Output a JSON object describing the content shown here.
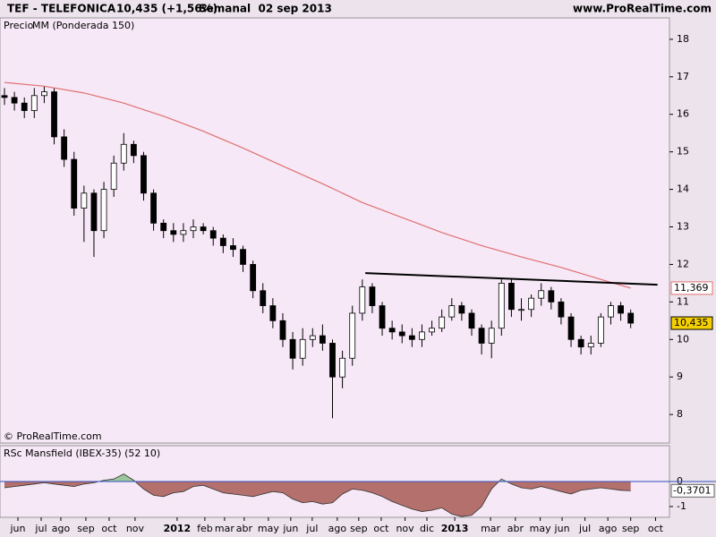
{
  "header": {
    "symbol": "TEF - TELEFONICA",
    "quote": "10,435 (+1,56%)",
    "period": "Semanal  02 sep 2013",
    "site": "www.ProRealTime.com",
    "watermark": "© ProRealTime.com"
  },
  "chart_data": [
    {
      "type": "candlestick",
      "xlim": [
        -0.45,
        66.9
      ],
      "ylim": [
        7.24,
        18.57
      ],
      "yticks": [
        8,
        9,
        10,
        11,
        12,
        13,
        14,
        15,
        16,
        17,
        18
      ],
      "series": [
        {
          "name": "Precio",
          "color": "#000000",
          "open": [
            16.5,
            16.45,
            16.3,
            16.1,
            16.5,
            16.6,
            15.4,
            14.8,
            13.5,
            13.9,
            12.9,
            14.0,
            14.7,
            15.2,
            14.9,
            13.9,
            13.1,
            12.9,
            12.8,
            12.9,
            13.0,
            12.9,
            12.7,
            12.5,
            12.4,
            12.0,
            11.3,
            10.9,
            10.5,
            10.0,
            9.5,
            10.0,
            10.1,
            9.9,
            9.0,
            9.5,
            10.7,
            11.4,
            10.9,
            10.3,
            10.2,
            10.1,
            10.0,
            10.2,
            10.3,
            10.6,
            10.9,
            10.7,
            10.3,
            9.9,
            10.3,
            11.5,
            10.8,
            10.8,
            11.1,
            11.3,
            11.0,
            10.6,
            10.0,
            9.8,
            9.9,
            10.6,
            10.9,
            10.7
          ],
          "high": [
            16.7,
            16.6,
            16.45,
            16.7,
            16.75,
            16.7,
            15.6,
            15.0,
            14.1,
            14.0,
            14.2,
            14.9,
            15.5,
            15.3,
            15.0,
            14.0,
            13.2,
            13.1,
            13.1,
            13.2,
            13.1,
            13.0,
            12.8,
            12.7,
            12.5,
            12.1,
            11.5,
            11.1,
            10.7,
            10.2,
            10.3,
            10.3,
            10.4,
            10.0,
            9.7,
            10.9,
            11.6,
            11.5,
            11.0,
            10.5,
            10.4,
            10.3,
            10.4,
            10.5,
            10.8,
            11.1,
            11.0,
            10.8,
            10.4,
            10.5,
            11.6,
            11.6,
            11.1,
            11.2,
            11.5,
            11.4,
            11.1,
            10.7,
            10.1,
            10.1,
            10.7,
            11.0,
            11.0,
            10.8
          ],
          "low": [
            16.25,
            16.1,
            15.9,
            15.9,
            16.3,
            15.2,
            14.6,
            13.3,
            12.6,
            12.2,
            12.7,
            13.8,
            14.5,
            14.7,
            13.7,
            12.9,
            12.7,
            12.6,
            12.6,
            12.7,
            12.8,
            12.5,
            12.3,
            12.2,
            11.8,
            11.1,
            10.7,
            10.3,
            9.8,
            9.2,
            9.3,
            9.8,
            9.7,
            7.9,
            8.7,
            9.3,
            10.5,
            10.7,
            10.1,
            10.0,
            9.9,
            9.8,
            9.8,
            10.1,
            10.2,
            10.5,
            10.5,
            10.1,
            9.6,
            9.5,
            10.1,
            10.6,
            10.5,
            10.6,
            10.9,
            10.8,
            10.4,
            9.8,
            9.6,
            9.6,
            9.8,
            10.4,
            10.5,
            10.3
          ],
          "close": [
            16.45,
            16.3,
            16.1,
            16.5,
            16.6,
            15.4,
            14.8,
            13.5,
            13.9,
            12.9,
            14.0,
            14.7,
            15.2,
            14.9,
            13.9,
            13.1,
            12.9,
            12.8,
            12.9,
            13.0,
            12.9,
            12.7,
            12.5,
            12.4,
            12.0,
            11.3,
            10.9,
            10.5,
            10.0,
            9.5,
            10.0,
            10.1,
            9.9,
            9.0,
            9.5,
            10.7,
            11.4,
            10.9,
            10.3,
            10.2,
            10.1,
            10.0,
            10.2,
            10.3,
            10.6,
            10.9,
            10.7,
            10.3,
            9.9,
            10.3,
            11.5,
            10.8,
            10.8,
            11.1,
            11.3,
            11.0,
            10.6,
            10.0,
            9.8,
            9.9,
            10.6,
            10.9,
            10.7,
            10.435
          ],
          "last_value": {
            "value": 10.435,
            "label": "10,435"
          }
        },
        {
          "name": "MM (Ponderada 150)",
          "color": "#e07070",
          "x": [
            0,
            4,
            8,
            12,
            16,
            20,
            24,
            28,
            32,
            36,
            40,
            44,
            48,
            52,
            56,
            60,
            63
          ],
          "values": [
            16.85,
            16.75,
            16.57,
            16.3,
            15.95,
            15.55,
            15.1,
            14.62,
            14.15,
            13.65,
            13.25,
            12.85,
            12.5,
            12.2,
            11.92,
            11.6,
            11.369
          ],
          "last_value": {
            "value": 11.369,
            "label": "11,369"
          }
        }
      ],
      "trendline": {
        "color": "#000000",
        "x": [
          36.3,
          65.7
        ],
        "values": [
          11.77,
          11.46
        ]
      }
    },
    {
      "type": "area",
      "title": "RSc Mansfield (IBEX-35) (52 10)",
      "positive_color": "#9cc79c",
      "negative_color": "#a85a55",
      "zero_line_color": "#3050c0",
      "ylim": [
        -1.43,
        1.43
      ],
      "yticks": [
        0,
        -1
      ],
      "values": [
        -0.25,
        -0.2,
        -0.15,
        -0.1,
        -0.05,
        -0.1,
        -0.15,
        -0.2,
        -0.1,
        -0.05,
        0.05,
        0.1,
        0.3,
        0.05,
        -0.3,
        -0.55,
        -0.6,
        -0.45,
        -0.4,
        -0.2,
        -0.15,
        -0.3,
        -0.45,
        -0.5,
        -0.55,
        -0.6,
        -0.5,
        -0.4,
        -0.45,
        -0.7,
        -0.85,
        -0.8,
        -0.9,
        -0.85,
        -0.5,
        -0.3,
        -0.35,
        -0.45,
        -0.6,
        -0.8,
        -0.95,
        -1.1,
        -1.2,
        -1.15,
        -1.05,
        -1.3,
        -1.4,
        -1.35,
        -1.0,
        -0.3,
        0.1,
        -0.1,
        -0.25,
        -0.3,
        -0.2,
        -0.3,
        -0.4,
        -0.5,
        -0.35,
        -0.3,
        -0.25,
        -0.3,
        -0.35,
        -0.3701
      ],
      "last_value": {
        "value": -0.3701,
        "label": "-0,3701"
      },
      "xlim": [
        -0.45,
        66.9
      ],
      "xticks": [
        {
          "value": 1.35,
          "label": "jun"
        },
        {
          "value": 3.69,
          "label": "jul"
        },
        {
          "value": 5.67,
          "label": "ago"
        },
        {
          "value": 8.19,
          "label": "sep"
        },
        {
          "value": 10.53,
          "label": "oct"
        },
        {
          "value": 13.14,
          "label": "nov"
        },
        {
          "value": 17.37,
          "label": "2012"
        },
        {
          "value": 20.16,
          "label": "feb"
        },
        {
          "value": 22.14,
          "label": "mar"
        },
        {
          "value": 24.12,
          "label": "abr"
        },
        {
          "value": 26.55,
          "label": "may"
        },
        {
          "value": 28.8,
          "label": "jun"
        },
        {
          "value": 30.96,
          "label": "jul"
        },
        {
          "value": 33.48,
          "label": "ago"
        },
        {
          "value": 35.64,
          "label": "sep"
        },
        {
          "value": 37.9,
          "label": "oct"
        },
        {
          "value": 40.3,
          "label": "nov"
        },
        {
          "value": 42.5,
          "label": "dic"
        },
        {
          "value": 45.3,
          "label": "2013"
        },
        {
          "value": 48.9,
          "label": "mar"
        },
        {
          "value": 51.4,
          "label": "abr"
        },
        {
          "value": 53.9,
          "label": "may"
        },
        {
          "value": 56.1,
          "label": "jun"
        },
        {
          "value": 58.4,
          "label": "jul"
        },
        {
          "value": 60.7,
          "label": "ago"
        },
        {
          "value": 63.0,
          "label": "sep"
        },
        {
          "value": 65.5,
          "label": "oct"
        }
      ]
    }
  ]
}
